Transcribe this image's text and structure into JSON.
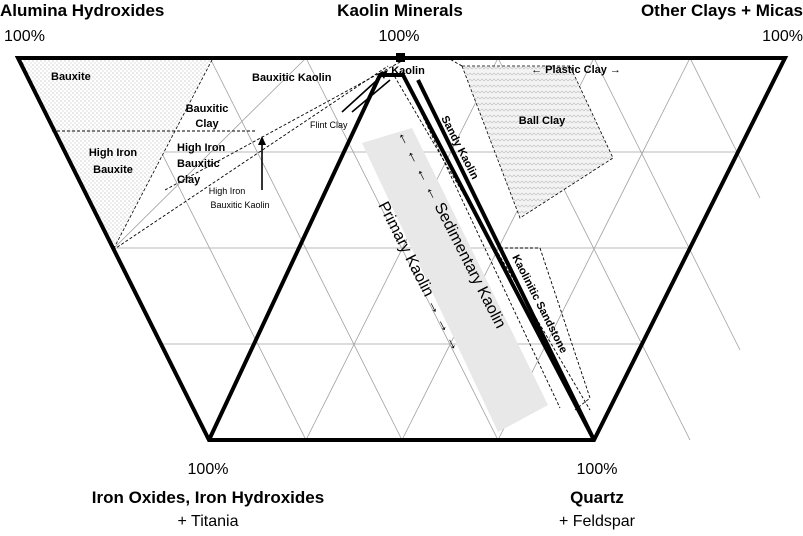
{
  "corners": {
    "top_left": {
      "title": "Alumina Hydroxides",
      "pct": "100%"
    },
    "top_center": {
      "title": "Kaolin Minerals",
      "pct": "100%"
    },
    "top_right": {
      "title": "Other Clays + Micas",
      "pct": "100%"
    },
    "bottom_left": {
      "pct": "100%",
      "title": "Iron Oxides, Iron Hydroxides",
      "sub": "+ Titania"
    },
    "bottom_right": {
      "pct": "100%",
      "title": "Quartz",
      "sub": "+ Feldspar"
    }
  },
  "regions": {
    "bauxite": "Bauxite",
    "bauxitic_clay_1": "Bauxitic",
    "bauxitic_clay_2": "Clay",
    "bauxitic_kaolin": "Bauxitic Kaolin",
    "kaolin": "Kaolin",
    "plastic_clay": "← Plastic Clay →",
    "ball_clay": "Ball Clay",
    "high_iron_bauxite_1": "High Iron",
    "high_iron_bauxite_2": "Bauxite",
    "high_iron_bauxitic_clay_1": "High Iron",
    "high_iron_bauxitic_clay_2": "Bauxitic",
    "high_iron_bauxitic_clay_3": "Clay",
    "flint_clay": "Flint Clay",
    "high_iron_bauxitic_kaolin_1": "High Iron",
    "high_iron_bauxitic_kaolin_2": "Bauxitic Kaolin",
    "sandy_kaolin": "Sandy Kaolin",
    "kaolinitic_sandstone": "Kaolinitic Sandstone",
    "sedimentary_kaolin": "← ← ← ←  Sedimentary Kaolin",
    "primary_kaolin": "Primary Kaolin → → →"
  },
  "colors": {
    "outline": "#000000",
    "grid": "#9a9a9a",
    "band": "#e6e6e6",
    "hatch": "#c8c8c8"
  }
}
